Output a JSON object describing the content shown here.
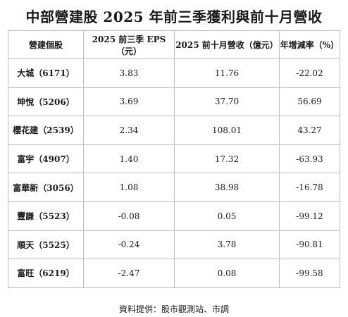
{
  "title": "中部營建股 2025 年前三季獲利與前十月營收",
  "headers": [
    "營建個股",
    "2025 前三季 EPS（元）",
    "2025 前十月營收（億元）",
    "年增減率（%）"
  ],
  "rows": [
    {
      "name": "大城（6171）",
      "eps": "3.83",
      "revenue": "11.76",
      "yoy": "-22.02"
    },
    {
      "name": "坤悅（5206）",
      "eps": "3.69",
      "revenue": "37.70",
      "yoy": "56.69"
    },
    {
      "name": "櫻花建（2539）",
      "eps": "2.34",
      "revenue": "108.01",
      "yoy": "43.27"
    },
    {
      "name": "富宇（4907）",
      "eps": "1.40",
      "revenue": "17.32",
      "yoy": "-63.93"
    },
    {
      "name": "富華新（3056）",
      "eps": "1.08",
      "revenue": "38.98",
      "yoy": "-16.78"
    },
    {
      "name": "豐謙（5523）",
      "eps": "-0.08",
      "revenue": "0.05",
      "yoy": "-99.12"
    },
    {
      "name": "順天（5525）",
      "eps": "-0.24",
      "revenue": "3.78",
      "yoy": "-90.81"
    },
    {
      "name": "富旺（6219）",
      "eps": "-2.47",
      "revenue": "0.08",
      "yoy": "-99.58"
    }
  ],
  "source": "資料提供：股市觀測站、市調"
}
